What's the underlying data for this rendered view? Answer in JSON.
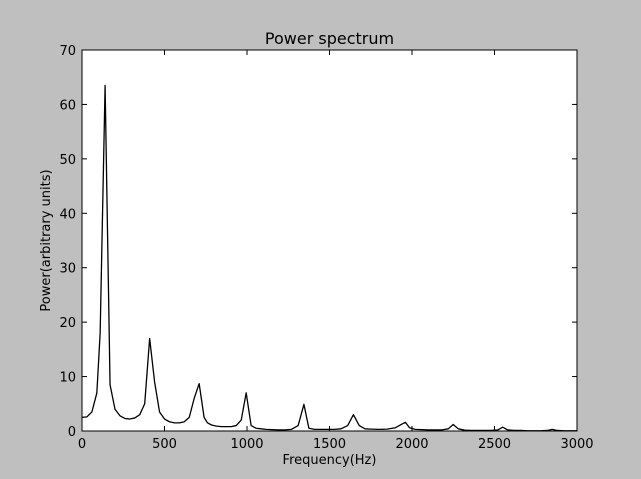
{
  "chart_data": {
    "type": "line",
    "title": "Power spectrum",
    "xlabel": "Frequency(Hz)",
    "ylabel": "Power(arbitrary units)",
    "xlim": [
      0,
      3000
    ],
    "ylim": [
      0,
      70
    ],
    "xticks": [
      0,
      500,
      1000,
      1500,
      2000,
      2500,
      3000
    ],
    "yticks": [
      0,
      10,
      20,
      30,
      40,
      50,
      60,
      70
    ],
    "grid": false,
    "legend": "none",
    "line_color": "#000000",
    "background": "#bfbfbf",
    "plot_background": "#ffffff",
    "series": [
      {
        "x": [
          0,
          30,
          60,
          90,
          110,
          140,
          170,
          200,
          230,
          260,
          290,
          320,
          350,
          380,
          410,
          440,
          470,
          500,
          530,
          560,
          590,
          620,
          650,
          680,
          710,
          740,
          760,
          785,
          815,
          845,
          875,
          905,
          935,
          965,
          995,
          1025,
          1055,
          1085,
          1115,
          1150,
          1190,
          1230,
          1270,
          1310,
          1345,
          1375,
          1410,
          1450,
          1490,
          1530,
          1570,
          1610,
          1645,
          1680,
          1715,
          1750,
          1800,
          1850,
          1900,
          1935,
          1960,
          1985,
          2020,
          2060,
          2100,
          2140,
          2180,
          2220,
          2250,
          2280,
          2320,
          2360,
          2400,
          2440,
          2480,
          2520,
          2550,
          2580,
          2620,
          2660,
          2700,
          2740,
          2780,
          2820,
          2850,
          2880,
          2920,
          2960,
          3000
        ],
        "y": [
          2.5,
          2.6,
          3.5,
          7,
          18,
          63.5,
          8.5,
          4,
          2.8,
          2.3,
          2.2,
          2.4,
          3,
          5,
          17,
          9,
          3.5,
          2.2,
          1.7,
          1.5,
          1.5,
          1.7,
          2.5,
          6,
          8.7,
          2.5,
          1.5,
          1.1,
          0.9,
          0.8,
          0.8,
          0.8,
          1,
          2,
          7,
          1,
          0.5,
          0.4,
          0.3,
          0.25,
          0.2,
          0.2,
          0.3,
          1,
          4.9,
          0.5,
          0.3,
          0.3,
          0.3,
          0.3,
          0.4,
          1,
          3,
          1,
          0.4,
          0.35,
          0.3,
          0.35,
          0.6,
          1.2,
          1.6,
          0.6,
          0.3,
          0.25,
          0.2,
          0.2,
          0.2,
          0.4,
          1.2,
          0.4,
          0.15,
          0.1,
          0.1,
          0.1,
          0.1,
          0.2,
          0.7,
          0.2,
          0.1,
          0.1,
          0.05,
          0.05,
          0.05,
          0.1,
          0.3,
          0.1,
          0.05,
          0.05,
          0.05
        ]
      }
    ]
  }
}
